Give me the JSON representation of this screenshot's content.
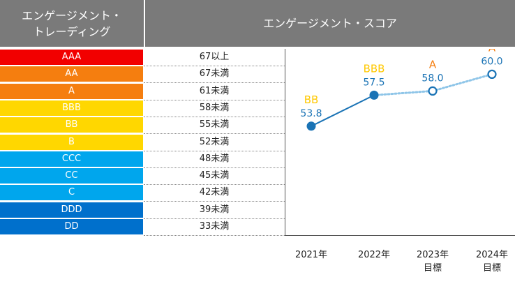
{
  "headers": {
    "left": [
      "エンゲージメント・",
      "トレーディング"
    ],
    "right": "エンゲージメント・スコア"
  },
  "rating_scale": [
    {
      "grade": "AAA",
      "threshold": "67以上",
      "color": "#f20000"
    },
    {
      "grade": "AA",
      "threshold": "67未満",
      "color": "#f57e0f"
    },
    {
      "grade": "A",
      "threshold": "61未満",
      "color": "#f57e0f"
    },
    {
      "grade": "BBB",
      "threshold": "58未満",
      "color": "#ffd700"
    },
    {
      "grade": "BB",
      "threshold": "55未満",
      "color": "#ffd700"
    },
    {
      "grade": "B",
      "threshold": "52未満",
      "color": "#ffd700"
    },
    {
      "grade": "CCC",
      "threshold": "48未満",
      "color": "#00a6ed"
    },
    {
      "grade": "CC",
      "threshold": "45未満",
      "color": "#00a6ed"
    },
    {
      "grade": "C",
      "threshold": "42未満",
      "color": "#00a6ed"
    },
    {
      "grade": "DDD",
      "threshold": "39未満",
      "color": "#0070cc"
    },
    {
      "grade": "DD",
      "threshold": "33未満",
      "color": "#0070cc"
    }
  ],
  "chart_data": {
    "type": "line",
    "title": "エンゲージメント・スコア",
    "categories": [
      "2021年",
      "2022年",
      "2023年\n目標",
      "2024年\n目標"
    ],
    "series": [
      {
        "values": [
          53.8,
          57.5,
          58.0,
          60.0
        ],
        "grades": [
          "BB",
          "BBB",
          "A",
          "A"
        ],
        "grade_colors": [
          "#ffc800",
          "#ffc800",
          "#f57e0f",
          "#f57e0f"
        ],
        "value_labels": [
          "53.8",
          "57.5",
          "58.0",
          "60.0"
        ],
        "marker_style": [
          "filled",
          "filled",
          "hollow",
          "hollow"
        ],
        "line_style": [
          "solid",
          "dotted",
          "dotted"
        ],
        "color": "#1a73b5",
        "dotted_color": "#8ec5e8"
      }
    ],
    "grid": false
  }
}
